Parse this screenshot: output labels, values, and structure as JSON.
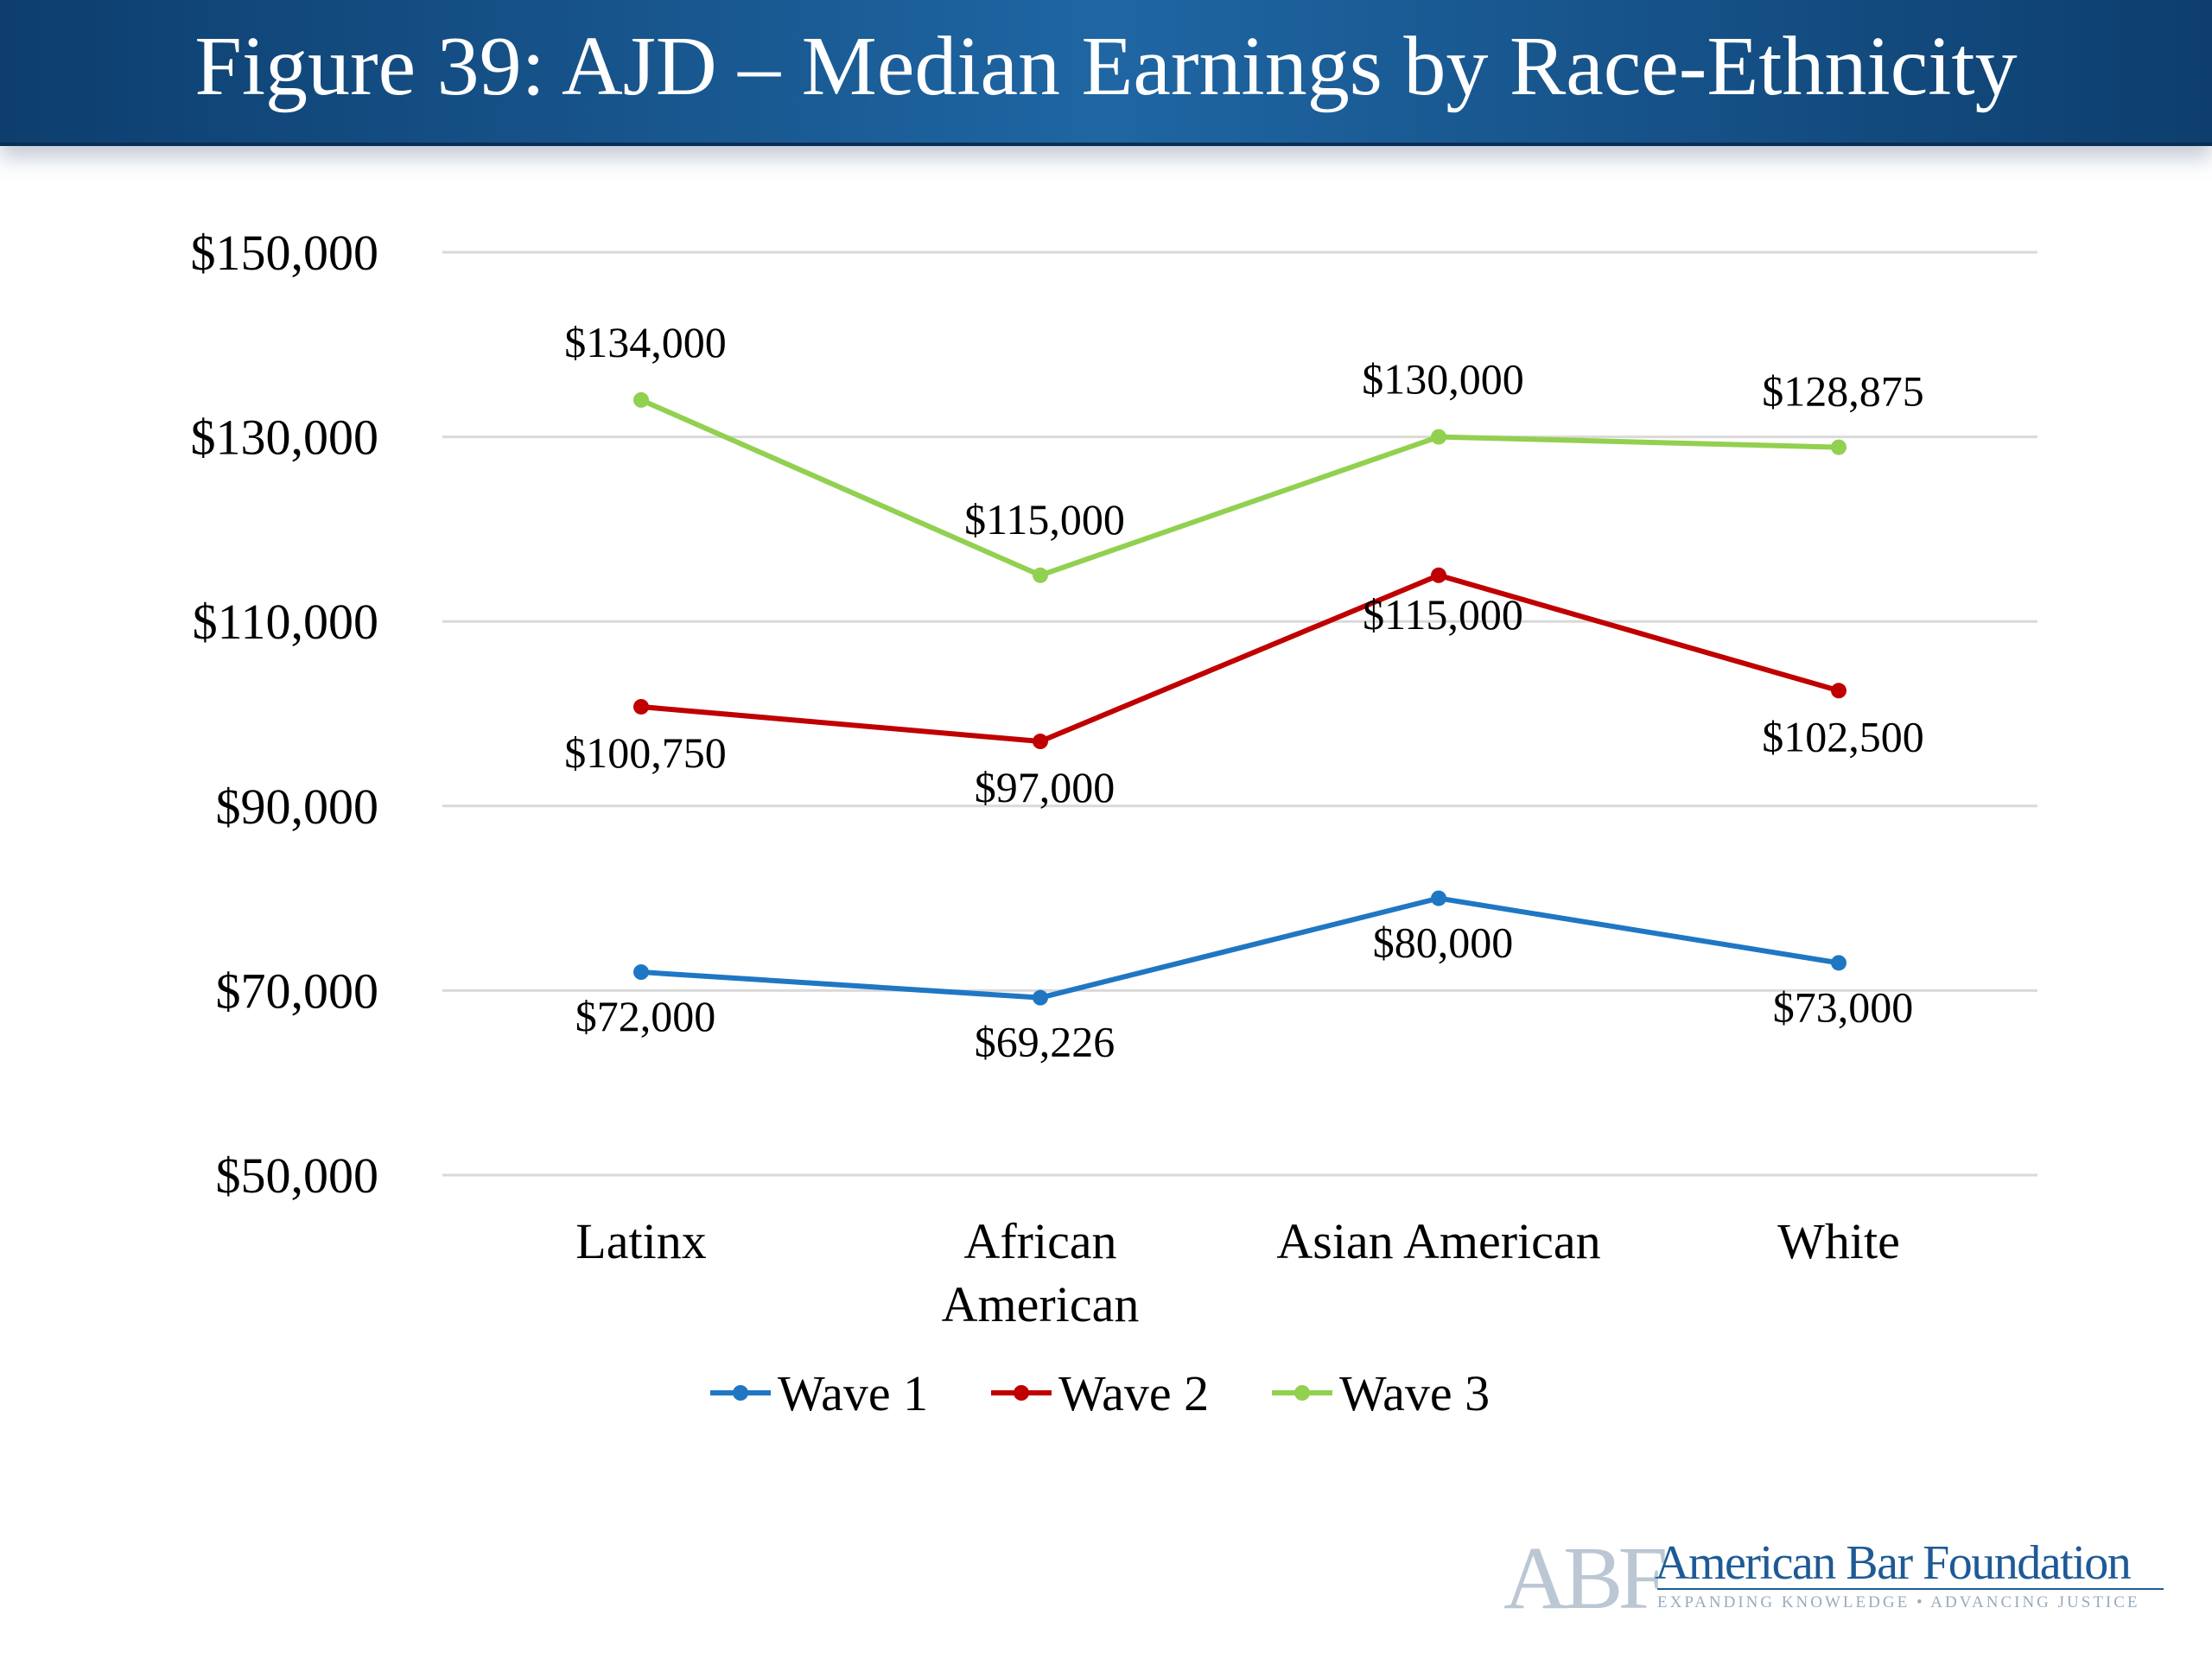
{
  "title": "Figure 39: AJD – Median Earnings by Race-Ethnicity",
  "chart_data": {
    "type": "line",
    "categories": [
      "Latinx",
      "African American",
      "Asian American",
      "White"
    ],
    "category_lines": [
      [
        "Latinx"
      ],
      [
        "African",
        "American"
      ],
      [
        "Asian American"
      ],
      [
        "White"
      ]
    ],
    "series": [
      {
        "name": "Wave 1",
        "color": "#1f77c4",
        "values": [
          72000,
          69226,
          80000,
          73000
        ],
        "labels": [
          "$72,000",
          "$69,226",
          "$80,000",
          "$73,000"
        ]
      },
      {
        "name": "Wave 2",
        "color": "#c00000",
        "values": [
          100750,
          97000,
          115000,
          102500
        ],
        "labels": [
          "$100,750",
          "$97,000",
          "$115,000",
          "$102,500"
        ]
      },
      {
        "name": "Wave 3",
        "color": "#92d050",
        "values": [
          134000,
          115000,
          130000,
          128875
        ],
        "labels": [
          "$134,000",
          "$115,000",
          "$130,000",
          "$128,875"
        ]
      }
    ],
    "ylim": [
      50000,
      150000
    ],
    "yticks": [
      50000,
      70000,
      90000,
      110000,
      130000,
      150000
    ],
    "ytick_labels": [
      "$50,000",
      "$70,000",
      "$90,000",
      "$110,000",
      "$130,000",
      "$150,000"
    ],
    "grid": true,
    "legend_position": "bottom"
  },
  "logo": {
    "mark": "ABF",
    "name": "American Bar Foundation",
    "tagline": "EXPANDING KNOWLEDGE • ADVANCING JUSTICE"
  }
}
